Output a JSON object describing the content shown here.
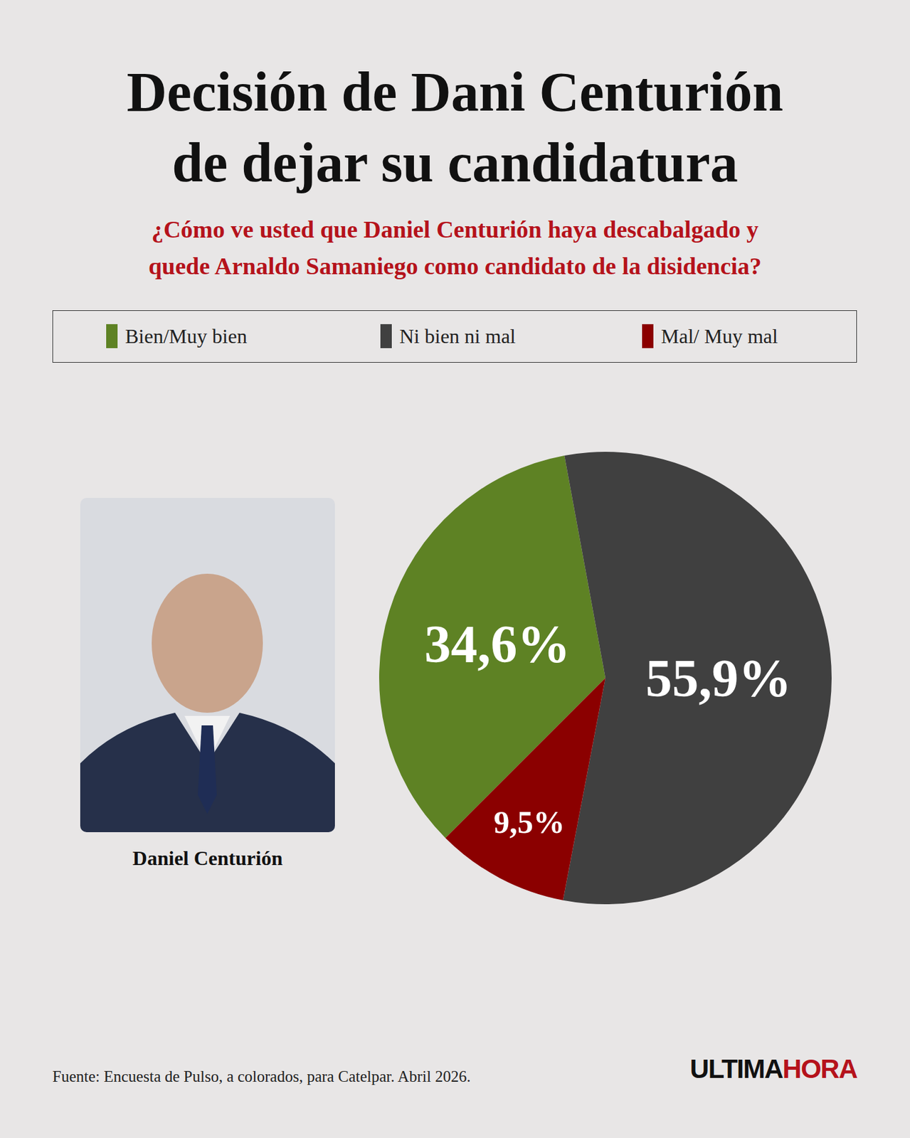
{
  "chart_data": {
    "type": "pie",
    "title": "Decisión de Dani Centurión de dejar su candidatura",
    "subtitle": "¿Cómo ve usted que Daniel Centurión haya descabalgado y quede Arnaldo Samaniego como candidato de la disidencia?",
    "categories": [
      "Bien/Muy bien",
      "Ni bien ni mal",
      "Mal/ Muy mal"
    ],
    "values": [
      34.6,
      55.9,
      9.5
    ],
    "value_labels": [
      "34,6%",
      "55,9%",
      "9,5%"
    ],
    "colors": [
      "#5e8224",
      "#404040",
      "#8b0000"
    ],
    "legend": "top",
    "data_labels": true,
    "photo_caption": "Daniel Centurión",
    "source": "Fuente: Encuesta de Pulso, a colorados, para Catelpar. Abril 2026.",
    "logo": [
      "ULTIMA",
      "HORA"
    ]
  }
}
